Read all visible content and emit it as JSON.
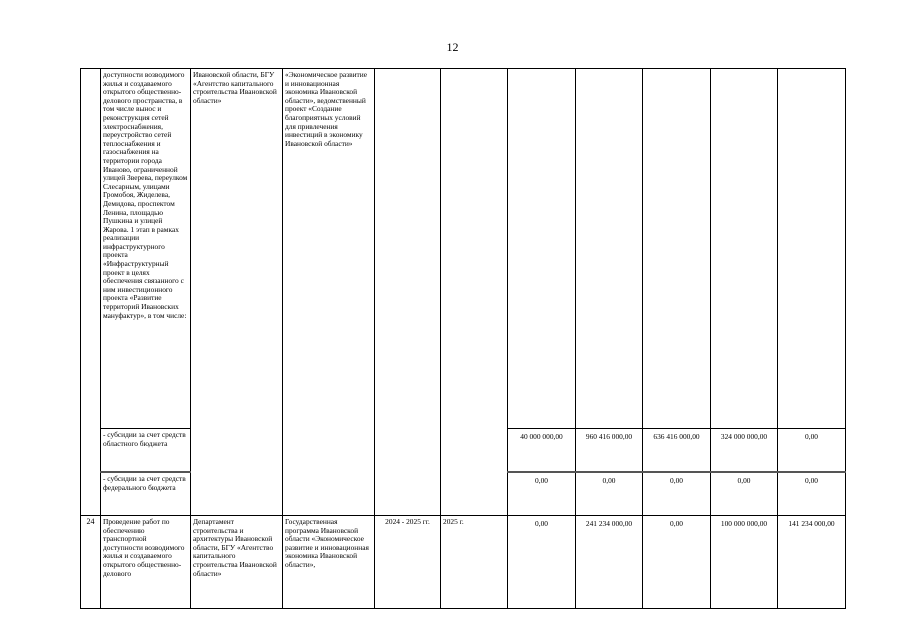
{
  "page_number": "12",
  "rows": [
    {
      "number": "",
      "description": "доступности возводимого жилья и создаваемого открытого общественно-делового пространства, в том числе вынос и реконструкция сетей электроснабжения, переустройство сетей теплоснабжения и газоснабжения на территории города Иваново, ограниченной улицей Зверева, переулком Слесарным, улицами Громобоя, Жиделева, Демидова, проспектом Ленина, площадью Пушкина и улицей Жарова. 1 этап в рамках реализации инфраструктурного проекта «Инфраструктурный проект в целях обеспечения связанного с ним инвестиционного проекта «Развитие территорий Ивановских мануфактур», в том числе:",
      "executor": "Ивановской области, БГУ «Агентство капитального строительства Ивановской области»",
      "program": "«Экономическое развитие и инновационная экономика Ивановской области», ведомственный проект «Создание благоприятных условий для привлечения инвестиций в экономику Ивановской области»",
      "period": "",
      "year": "",
      "subrows": [
        {
          "label": "- субсидии за счет средств областного бюджета",
          "values": [
            "40 000 000,00",
            "960 416 000,00",
            "636 416 000,00",
            "324 000 000,00",
            "0,00"
          ]
        },
        {
          "label": "- субсидии за счет средств федерального бюджета",
          "values": [
            "0,00",
            "0,00",
            "0,00",
            "0,00",
            "0,00"
          ]
        }
      ]
    },
    {
      "number": "24",
      "description": "Проведение работ по обеспечению транспортной доступности возводимого жилья и создаваемого открытого общественно-делового",
      "executor": "Департамент строительства и архитектуры Ивановской области, БГУ «Агентство капитального строительства Ивановской области»",
      "program": "Государственная программа Ивановской области «Экономическое развитие и инновационная экономика Ивановской области»,",
      "period": "2024 - 2025 гг.",
      "year": "2025 г.",
      "values": [
        "0,00",
        "241 234 000,00",
        "0,00",
        "100 000 000,00",
        "141 234 000,00"
      ]
    }
  ]
}
